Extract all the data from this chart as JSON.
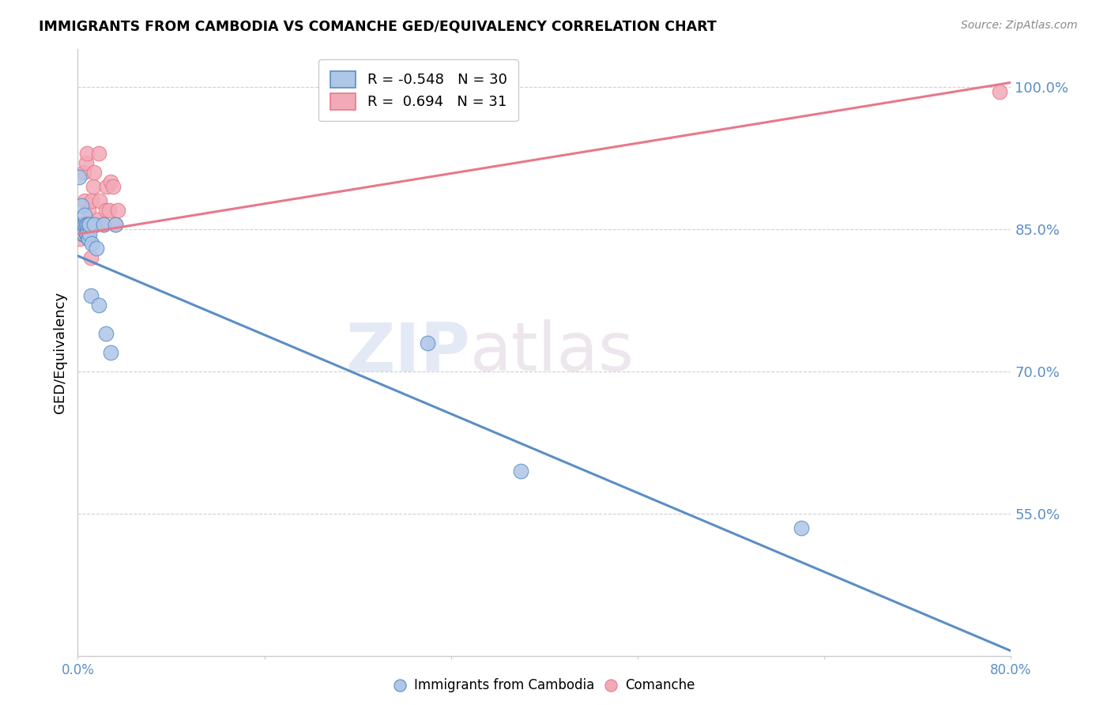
{
  "title": "IMMIGRANTS FROM CAMBODIA VS COMANCHE GED/EQUIVALENCY CORRELATION CHART",
  "source": "Source: ZipAtlas.com",
  "ylabel": "GED/Equivalency",
  "legend_label_blue": "Immigrants from Cambodia",
  "legend_label_pink": "Comanche",
  "R_blue": -0.548,
  "N_blue": 30,
  "R_pink": 0.694,
  "N_pink": 31,
  "xlim": [
    0.0,
    0.8
  ],
  "ylim": [
    0.4,
    1.04
  ],
  "xtick_positions": [
    0.0,
    0.16,
    0.32,
    0.48,
    0.64,
    0.8
  ],
  "xtick_labels": [
    "0.0%",
    "",
    "",
    "",
    "",
    "80.0%"
  ],
  "ytick_values": [
    0.55,
    0.7,
    0.85,
    1.0
  ],
  "ytick_labels": [
    "55.0%",
    "70.0%",
    "85.0%",
    "100.0%"
  ],
  "color_blue": "#aec6e8",
  "color_pink": "#f2aab8",
  "line_color_blue": "#5b8ec4",
  "line_color_pink": "#e8788a",
  "watermark_text": "ZIPatlas",
  "blue_points_x": [
    0.001,
    0.003,
    0.003,
    0.004,
    0.004,
    0.005,
    0.005,
    0.006,
    0.006,
    0.007,
    0.007,
    0.008,
    0.008,
    0.009,
    0.009,
    0.009,
    0.01,
    0.01,
    0.011,
    0.012,
    0.014,
    0.016,
    0.018,
    0.022,
    0.024,
    0.028,
    0.032,
    0.3,
    0.38,
    0.62
  ],
  "blue_points_y": [
    0.905,
    0.855,
    0.875,
    0.845,
    0.855,
    0.845,
    0.855,
    0.855,
    0.865,
    0.845,
    0.855,
    0.855,
    0.845,
    0.84,
    0.84,
    0.855,
    0.845,
    0.855,
    0.78,
    0.835,
    0.855,
    0.83,
    0.77,
    0.855,
    0.74,
    0.72,
    0.855,
    0.73,
    0.595,
    0.535
  ],
  "pink_points_x": [
    0.001,
    0.002,
    0.003,
    0.004,
    0.005,
    0.005,
    0.006,
    0.007,
    0.007,
    0.008,
    0.009,
    0.009,
    0.01,
    0.011,
    0.012,
    0.013,
    0.014,
    0.015,
    0.016,
    0.017,
    0.018,
    0.019,
    0.022,
    0.024,
    0.025,
    0.027,
    0.028,
    0.03,
    0.032,
    0.034,
    0.79
  ],
  "pink_points_y": [
    0.855,
    0.84,
    0.855,
    0.855,
    0.91,
    0.855,
    0.88,
    0.855,
    0.92,
    0.93,
    0.84,
    0.87,
    0.855,
    0.82,
    0.88,
    0.895,
    0.91,
    0.855,
    0.855,
    0.86,
    0.93,
    0.88,
    0.855,
    0.87,
    0.895,
    0.87,
    0.9,
    0.895,
    0.855,
    0.87,
    0.995
  ],
  "blue_line_x0": 0.0,
  "blue_line_x1": 0.8,
  "blue_line_y0": 0.822,
  "blue_line_y1": 0.405,
  "pink_line_x0": 0.0,
  "pink_line_x1": 0.8,
  "pink_line_y0": 0.845,
  "pink_line_y1": 1.005
}
